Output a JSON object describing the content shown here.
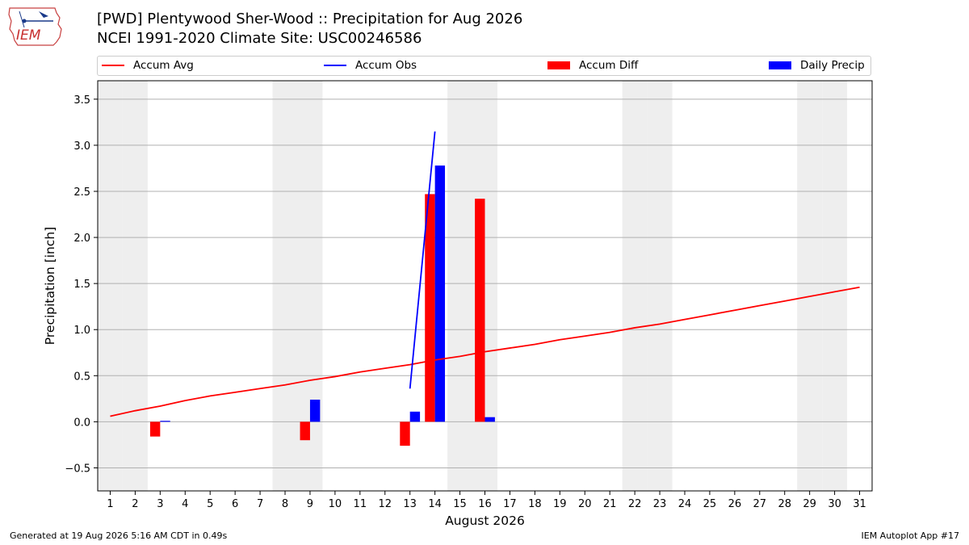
{
  "header": {
    "title_line1": "[PWD] Plentywood Sher-Wood :: Precipitation for Aug 2026",
    "title_line2": "NCEI 1991-2020 Climate Site: USC00246586"
  },
  "logo": {
    "text": "IEM"
  },
  "legend": {
    "items": [
      {
        "label": "Accum Avg",
        "kind": "line",
        "color": "#ff0000"
      },
      {
        "label": "Accum Obs",
        "kind": "line",
        "color": "#0000ff"
      },
      {
        "label": "Accum Diff",
        "kind": "box",
        "color": "#ff0000"
      },
      {
        "label": "Daily Precip",
        "kind": "box",
        "color": "#0000ff"
      }
    ]
  },
  "footer": {
    "left": "Generated at 19 Aug 2026 5:16 AM CDT in 0.49s",
    "right": "IEM Autoplot App #17"
  },
  "chart_data": {
    "type": "bar",
    "xlabel": "August 2026",
    "ylabel": "Precipitation [inch]",
    "ylim": [
      -0.75,
      3.7
    ],
    "xlim": [
      0.5,
      31.5
    ],
    "grid": "horizontal",
    "weekend_days": [
      1,
      2,
      8,
      9,
      15,
      16,
      22,
      23,
      29,
      30
    ],
    "x_ticks": [
      "1",
      "2",
      "3",
      "4",
      "5",
      "6",
      "7",
      "8",
      "9",
      "10",
      "11",
      "12",
      "13",
      "14",
      "15",
      "16",
      "17",
      "18",
      "19",
      "20",
      "21",
      "22",
      "23",
      "24",
      "25",
      "26",
      "27",
      "28",
      "29",
      "30",
      "31"
    ],
    "y_ticks": [
      "−0.5",
      "0.0",
      "0.5",
      "1.0",
      "1.5",
      "2.0",
      "2.5",
      "3.0",
      "3.5"
    ],
    "y_tick_values": [
      -0.5,
      0.0,
      0.5,
      1.0,
      1.5,
      2.0,
      2.5,
      3.0,
      3.5
    ],
    "series": [
      {
        "name": "Accum Avg",
        "kind": "line",
        "color": "#ff0000",
        "x": [
          1,
          2,
          3,
          4,
          5,
          6,
          7,
          8,
          9,
          10,
          11,
          12,
          13,
          14,
          15,
          16,
          17,
          18,
          19,
          20,
          21,
          22,
          23,
          24,
          25,
          26,
          27,
          28,
          29,
          30,
          31
        ],
        "values": [
          0.06,
          0.12,
          0.17,
          0.23,
          0.28,
          0.32,
          0.36,
          0.4,
          0.45,
          0.49,
          0.54,
          0.58,
          0.62,
          0.67,
          0.71,
          0.76,
          0.8,
          0.84,
          0.89,
          0.93,
          0.97,
          1.02,
          1.06,
          1.11,
          1.16,
          1.21,
          1.26,
          1.31,
          1.36,
          1.41,
          1.46
        ]
      },
      {
        "name": "Accum Obs",
        "kind": "line",
        "color": "#0000ff",
        "x": [
          13,
          14
        ],
        "values": [
          0.36,
          3.15
        ]
      },
      {
        "name": "Accum Diff",
        "kind": "bar",
        "color": "#ff0000",
        "x": [
          3,
          9,
          13,
          14,
          16
        ],
        "values": [
          -0.16,
          -0.2,
          -0.26,
          2.47,
          2.42
        ]
      },
      {
        "name": "Daily Precip",
        "kind": "bar",
        "color": "#0000ff",
        "x": [
          3,
          9,
          13,
          14,
          16
        ],
        "values": [
          0.01,
          0.24,
          0.11,
          2.78,
          0.05
        ]
      }
    ]
  }
}
